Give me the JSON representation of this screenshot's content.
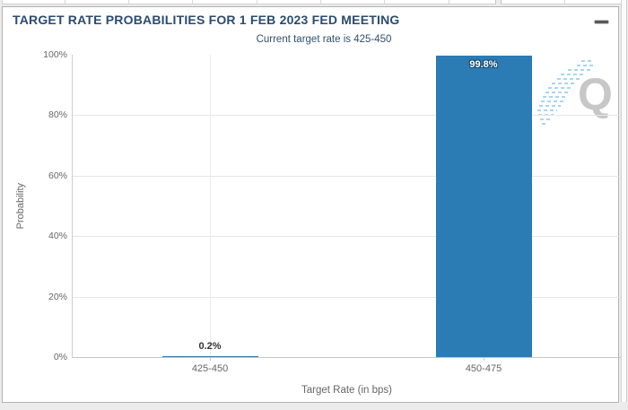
{
  "panel": {
    "title": "TARGET RATE PROBABILITIES FOR 1 FEB 2023 FED MEETING",
    "subtitle": "Current target rate is 425-450",
    "menu_icon": "hamburger-menu-icon",
    "watermark_letter": "Q"
  },
  "colors": {
    "bar": "#2b7bb4",
    "title_text": "#2b4c6f",
    "axis_text": "#666666",
    "gridline": "#e6e6e6",
    "panel_border": "#b2b2b2",
    "watermark_gray": "#c7c7c7",
    "watermark_blue": "#a9d6f0"
  },
  "chart_data": {
    "type": "bar",
    "title": "TARGET RATE PROBABILITIES FOR 1 FEB 2023 FED MEETING",
    "subtitle": "Current target rate is 425-450",
    "categories": [
      "425-450",
      "450-475"
    ],
    "values": [
      0.2,
      99.8
    ],
    "value_labels": [
      "0.2%",
      "99.8%"
    ],
    "xlabel": "Target Rate (in bps)",
    "ylabel": "Probability",
    "ylim": [
      0,
      100
    ],
    "ytick_step": 20,
    "ytick_labels": [
      "0%",
      "20%",
      "40%",
      "60%",
      "80%",
      "100%"
    ],
    "grid": true,
    "legend": false
  }
}
